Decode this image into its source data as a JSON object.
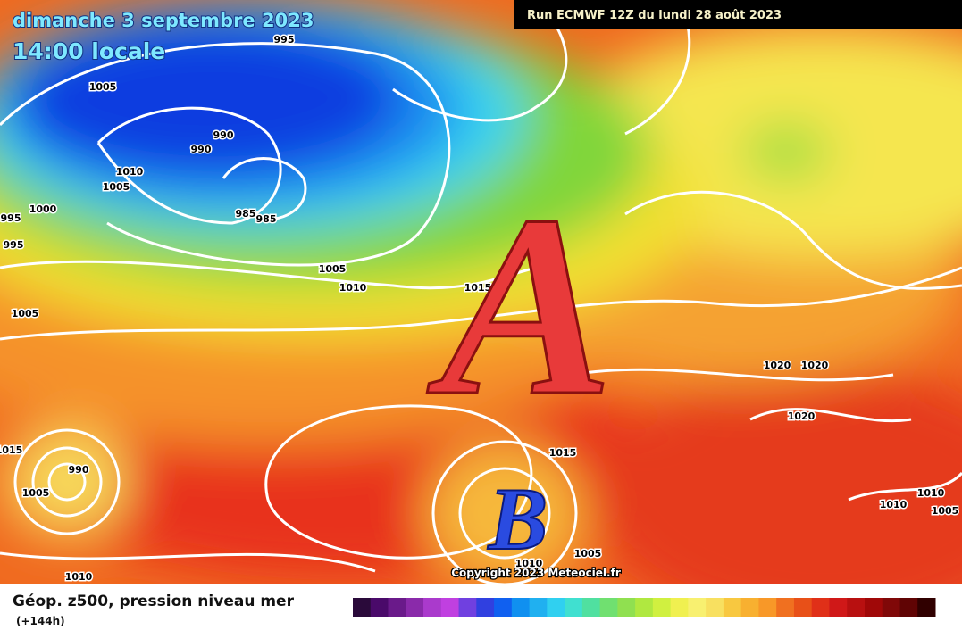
{
  "header": {
    "date": "dimanche 3 septembre 2023",
    "time": "14:00 locale",
    "run": "Run ECMWF 12Z du lundi 28 août 2023"
  },
  "map": {
    "high": "A",
    "low": "B",
    "copyright": "Copyright 2023 Meteociel.fr",
    "isobar_labels": [
      995,
      1005,
      990,
      990,
      1010,
      1005,
      985,
      985,
      1000,
      995,
      995,
      1005,
      1010,
      1015,
      1005,
      1020,
      1020,
      1020,
      1015,
      990,
      1005,
      1015,
      1010,
      1010,
      1005,
      1010,
      1005,
      1010
    ]
  },
  "legend": {
    "title": "Géop. z500, pression niveau mer",
    "lead": "(+144h)"
  }
}
